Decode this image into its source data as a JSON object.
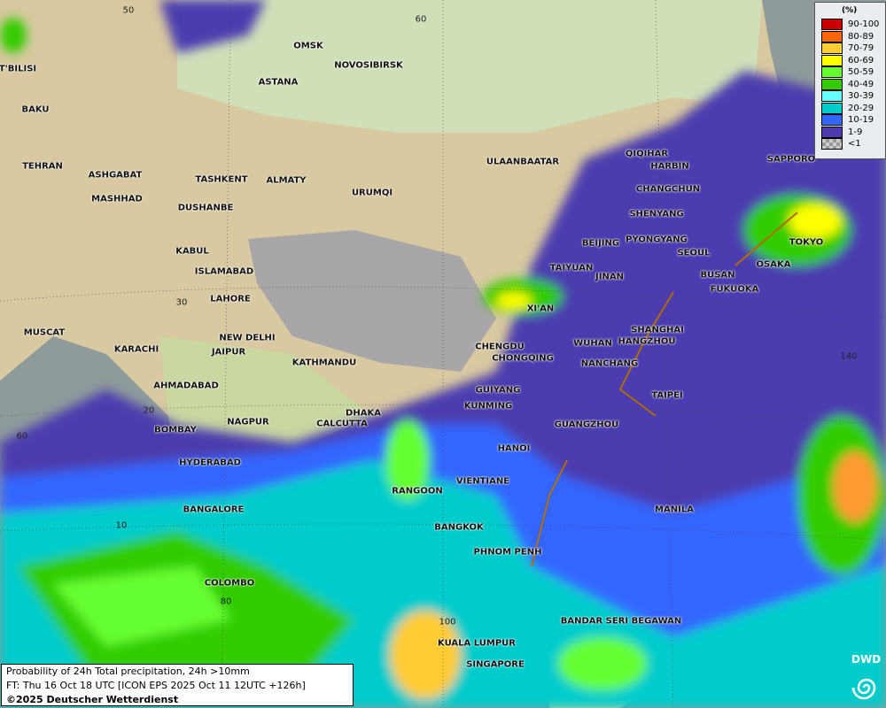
{
  "legend": {
    "unit": "(%)",
    "classes": [
      {
        "label": "90-100",
        "color": "#cc0000"
      },
      {
        "label": "80-89",
        "color": "#ff6600"
      },
      {
        "label": "70-79",
        "color": "#ffcc33"
      },
      {
        "label": "60-69",
        "color": "#ffff00"
      },
      {
        "label": "50-59",
        "color": "#66ff33"
      },
      {
        "label": "40-49",
        "color": "#33cc00"
      },
      {
        "label": "30-39",
        "color": "#66ffff"
      },
      {
        "label": "20-29",
        "color": "#00cccc"
      },
      {
        "label": "10-19",
        "color": "#3366ff"
      },
      {
        "label": "1-9",
        "color": "#4c3caf"
      },
      {
        "label": "<1",
        "color": "checkered-grey"
      }
    ]
  },
  "caption": {
    "line1": "Probability of 24h Total precipitation, 24h >10mm",
    "line2": "FT: Thu 16 Oct 18 UTC [ICON EPS 2025 Oct 11 12UTC +126h]",
    "line3": "©2025 Deutscher Wetterdienst"
  },
  "logo": {
    "text": "DWD",
    "icon": "dwd-swirl-icon"
  },
  "grid_labels": [
    "50",
    "60",
    "30",
    "20",
    "10",
    "60",
    "80",
    "100",
    "140"
  ],
  "cities": [
    "T'BILISI",
    "BAKU",
    "TEHRAN",
    "ASHGABAT",
    "MASHHAD",
    "OMSK",
    "NOVOSIBIRSK",
    "ASTANA",
    "TASHKENT",
    "ALMATY",
    "DUSHANBE",
    "URUMQI",
    "ULAANBAATAR",
    "QIQIHAR",
    "HARBIN",
    "CHANGCHUN",
    "SAPPORO",
    "SHENYANG",
    "BEIJING",
    "PYONGYANG",
    "SEOUL",
    "TOKYO",
    "OSAKA",
    "BUSAN",
    "FUKUOKA",
    "TAIYUAN",
    "JINAN",
    "XI'AN",
    "KABUL",
    "ISLAMABAD",
    "LAHORE",
    "NEW DELHI",
    "JAIPUR",
    "MUSCAT",
    "KARACHI",
    "AHMADABAD",
    "KATHMANDU",
    "CHENGDU",
    "CHONGQING",
    "WUHAN",
    "SHANGHAI",
    "HANGZHOU",
    "NANCHANG",
    "TAIPEI",
    "GUIYANG",
    "KUNMING",
    "GUANGZHOU",
    "DHAKA",
    "CALCUTTA",
    "NAGPUR",
    "BOMBAY",
    "HYDERABAD",
    "HANOI",
    "RANGOON",
    "VIENTIANE",
    "BANGALORE",
    "MANILA",
    "BANGKOK",
    "PHNOM PENH",
    "COLOMBO",
    "BANDAR SERI BEGAWAN",
    "KUALA LUMPUR",
    "SINGAPORE"
  ]
}
